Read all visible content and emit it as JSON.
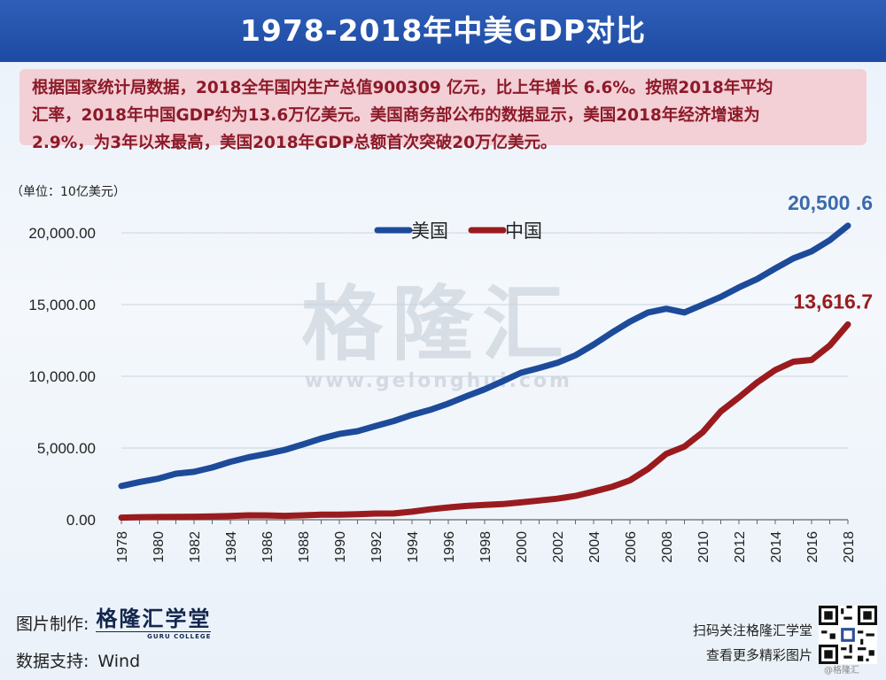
{
  "header": {
    "title": "1978-2018年中美GDP对比"
  },
  "description": {
    "lines": [
      "根据国家统计局数据，2018全年国内生产总值900309 亿元，比上年增长 6.6%。按照2018年平均",
      "汇率，2018年中国GDP约为13.6万亿美元。美国商务部公布的数据显示，美国2018年经济增速为",
      "2.9%，为3年以来最高，美国2018年GDP总额首次突破20万亿美元。"
    ]
  },
  "watermark": {
    "name": "格隆汇",
    "url": "www.gelonghui.com"
  },
  "chart_data": {
    "type": "line",
    "unit_label": "（单位：10亿美元）",
    "ylim": [
      0,
      20000
    ],
    "yticks": [
      "0.00",
      "5,000.00",
      "10,000.00",
      "15,000.00",
      "20,000.00"
    ],
    "ytick_values": [
      0,
      5000,
      10000,
      15000,
      20000
    ],
    "xlim": [
      1978,
      2018
    ],
    "xticks": [
      "1978",
      "1980",
      "1982",
      "1984",
      "1986",
      "1988",
      "1990",
      "1992",
      "1994",
      "1996",
      "1998",
      "2000",
      "2002",
      "2004",
      "2006",
      "2008",
      "2010",
      "2012",
      "2014",
      "2016",
      "2018"
    ],
    "grid": "horizontal",
    "legend_position": "top-center",
    "x": [
      1978,
      1979,
      1980,
      1981,
      1982,
      1983,
      1984,
      1985,
      1986,
      1987,
      1988,
      1989,
      1990,
      1991,
      1992,
      1993,
      1994,
      1995,
      1996,
      1997,
      1998,
      1999,
      2000,
      2001,
      2002,
      2003,
      2004,
      2005,
      2006,
      2007,
      2008,
      2009,
      2010,
      2011,
      2012,
      2013,
      2014,
      2015,
      2016,
      2017,
      2018
    ],
    "series": [
      {
        "name": "美国",
        "color": "#1d4b9a",
        "values": [
          2350,
          2630,
          2860,
          3210,
          3340,
          3640,
          4040,
          4350,
          4590,
          4870,
          5250,
          5660,
          5980,
          6170,
          6540,
          6880,
          7310,
          7660,
          8100,
          8610,
          9090,
          9660,
          10250,
          10580,
          10940,
          11460,
          12210,
          13040,
          13810,
          14450,
          14710,
          14450,
          14990,
          15540,
          16200,
          16780,
          17520,
          18220,
          18710,
          19490,
          20500.6
        ]
      },
      {
        "name": "中国",
        "color": "#9a1b1e",
        "values": [
          150,
          180,
          190,
          200,
          210,
          230,
          260,
          310,
          300,
          270,
          310,
          350,
          360,
          380,
          430,
          440,
          560,
          730,
          860,
          960,
          1030,
          1090,
          1210,
          1340,
          1470,
          1660,
          1960,
          2290,
          2750,
          3550,
          4590,
          5100,
          6090,
          7550,
          8530,
          9570,
          10440,
          11020,
          11140,
          12140,
          13616.7
        ]
      }
    ],
    "end_labels": [
      {
        "series": "美国",
        "text": "20,500 .6",
        "color": "#3c6aaa"
      },
      {
        "series": "中国",
        "text": "13,616.7",
        "color": "#9a1b1e"
      }
    ]
  },
  "footer": {
    "made_by_label": "图片制作:",
    "brand": "格隆汇学堂",
    "brand_sub": "GURU COLLEGE",
    "data_source_label": "数据支持:",
    "data_source": "Wind",
    "cta_line1": "扫码关注格隆汇学堂",
    "cta_line2": "查看更多精彩图片",
    "qr_tag": "@格隆汇"
  }
}
